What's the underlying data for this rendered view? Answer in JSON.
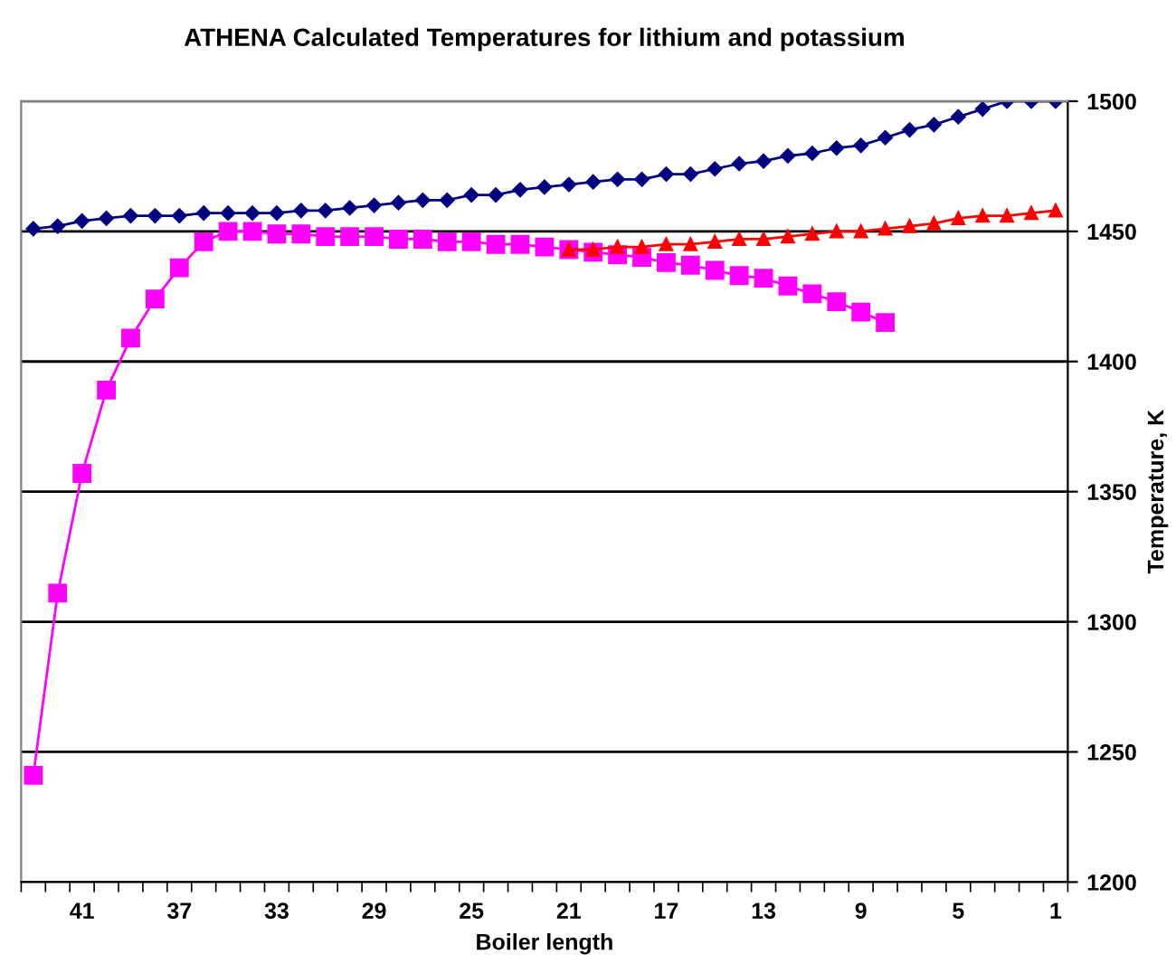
{
  "chart_data": {
    "type": "line",
    "title": "ATHENA Calculated Temperatures for lithium and potassium",
    "xlabel": "Boiler length",
    "ylabel": "Temperature, K",
    "categories": [
      null,
      null,
      "41",
      null,
      null,
      null,
      "37",
      null,
      null,
      null,
      "33",
      null,
      null,
      null,
      "29",
      null,
      null,
      null,
      "25",
      null,
      null,
      null,
      "21",
      null,
      null,
      null,
      "17",
      null,
      null,
      null,
      "13",
      null,
      null,
      null,
      "9",
      null,
      null,
      null,
      "5",
      null,
      null,
      null,
      "1"
    ],
    "series": [
      {
        "color": "#000080",
        "marker": "diamond",
        "values": [
          1451,
          1452,
          1454,
          1455,
          1456,
          1456,
          1456,
          1457,
          1457,
          1457,
          1457,
          1458,
          1458,
          1459,
          1460,
          1461,
          1462,
          1462,
          1464,
          1464,
          1466,
          1467,
          1468,
          1469,
          1470,
          1470,
          1472,
          1472,
          1474,
          1476,
          1477,
          1479,
          1480,
          1482,
          1483,
          1486,
          1489,
          1491,
          1494,
          1497,
          1500,
          1500,
          1500
        ]
      },
      {
        "color": "#ff00ff",
        "marker": "square",
        "values": [
          1241,
          1311,
          1357,
          1389,
          1409,
          1424,
          1436,
          1446,
          1450,
          1450,
          1449,
          1449,
          1448,
          1448,
          1448,
          1447,
          1447,
          1446,
          1446,
          1445,
          1445,
          1444,
          1443,
          1442,
          1441,
          1440,
          1438,
          1437,
          1435,
          1433,
          1432,
          1429,
          1426,
          1423,
          1419,
          1415,
          null,
          null,
          null,
          null,
          null,
          null,
          null
        ]
      },
      {
        "color": "#ff0000",
        "marker": "triangle",
        "values": [
          null,
          null,
          null,
          null,
          null,
          null,
          null,
          null,
          null,
          null,
          null,
          null,
          null,
          null,
          null,
          null,
          null,
          null,
          null,
          null,
          null,
          null,
          1443,
          1443,
          1444,
          1444,
          1445,
          1445,
          1446,
          1447,
          1447,
          1448,
          1449,
          1450,
          1450,
          1451,
          1452,
          1453,
          1455,
          1456,
          1456,
          1457,
          1458
        ]
      }
    ],
    "ylim": [
      1200,
      1500
    ],
    "yticks": [
      1200,
      1250,
      1300,
      1350,
      1400,
      1450,
      1500
    ],
    "grid": "y",
    "line_style": "solid",
    "legend": false
  }
}
